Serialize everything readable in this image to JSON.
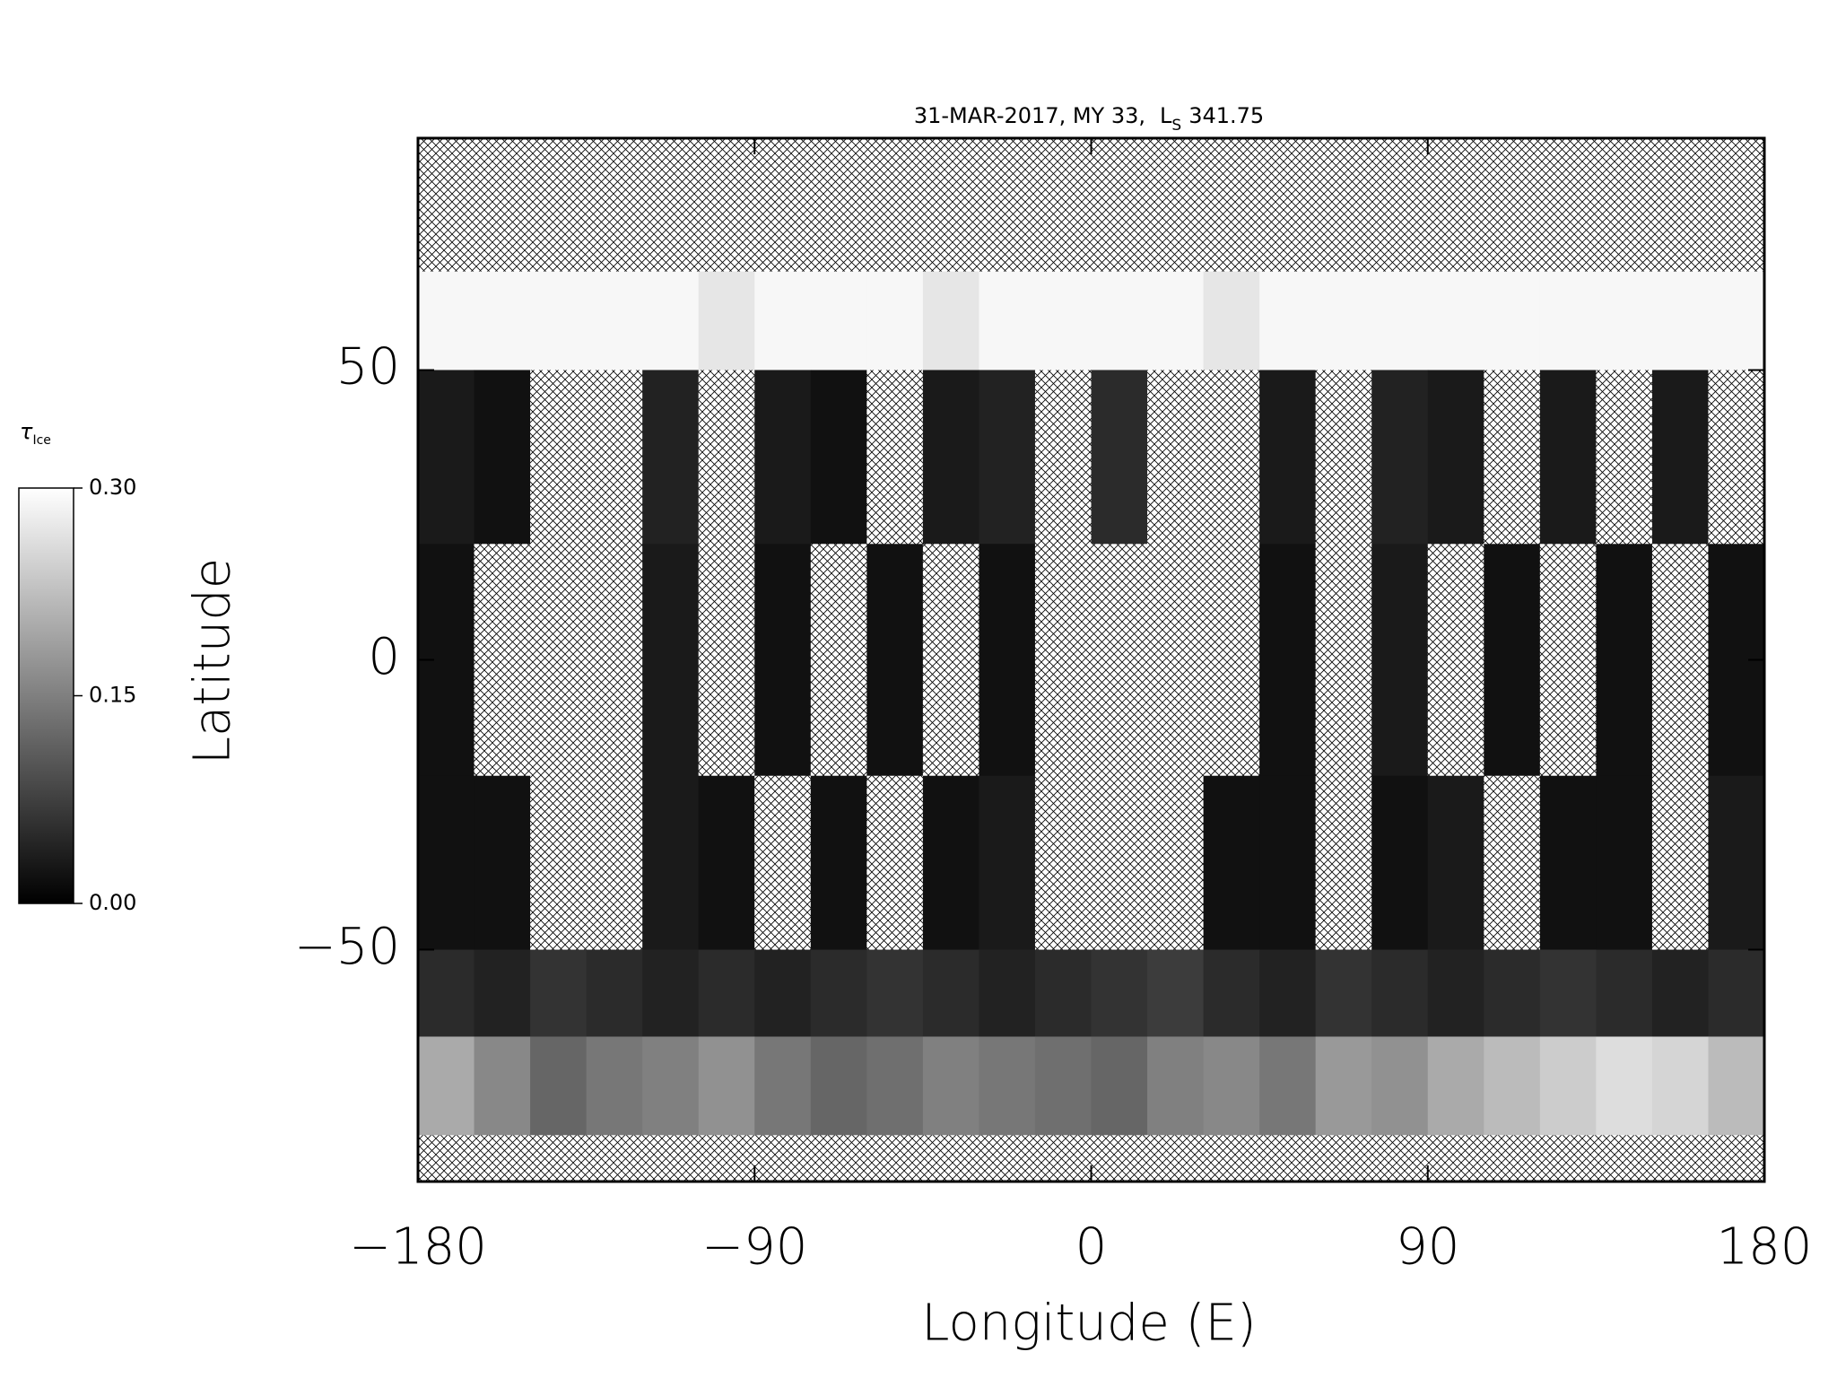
{
  "chart_data": {
    "type": "heatmap",
    "title_date": "31-MAR-2017, MY 33,",
    "title_symbol": "L",
    "title_subscript": "S",
    "title_value": "341.75",
    "xlabel": "Longitude (E)",
    "ylabel": "Latitude",
    "xlim": [
      -180,
      180
    ],
    "ylim": [
      -90,
      90
    ],
    "xticks": [
      {
        "value": -180,
        "label": "−180"
      },
      {
        "value": -90,
        "label": "−90"
      },
      0,
      90,
      180
    ],
    "yticks": [
      {
        "value": -50,
        "label": "−50"
      },
      0,
      50
    ],
    "x_bins": [
      -180,
      -165,
      -150,
      -135,
      -120,
      -105,
      -90,
      -75,
      -60,
      -45,
      -30,
      -15,
      0,
      15,
      30,
      45,
      60,
      75,
      90,
      105,
      120,
      135,
      150,
      165,
      180
    ],
    "y_bins": [
      90,
      67,
      50,
      20,
      -20,
      -50,
      -65,
      -82,
      -90
    ],
    "values": [
      [
        null,
        null,
        null,
        null,
        null,
        null,
        null,
        null,
        null,
        null,
        null,
        null,
        null,
        null,
        null,
        null,
        null,
        null,
        null,
        null,
        null,
        null,
        null,
        null
      ],
      [
        0.29,
        0.29,
        0.29,
        0.29,
        0.29,
        0.27,
        0.29,
        0.29,
        0.29,
        0.27,
        0.29,
        0.29,
        0.29,
        0.29,
        0.27,
        0.29,
        0.29,
        0.29,
        0.29,
        0.29,
        0.29,
        0.29,
        0.29,
        0.29
      ],
      [
        0.03,
        0.02,
        null,
        null,
        0.04,
        null,
        0.03,
        0.02,
        null,
        0.03,
        0.04,
        null,
        0.05,
        null,
        null,
        0.03,
        null,
        0.04,
        0.03,
        null,
        0.03,
        null,
        0.03,
        null
      ],
      [
        0.02,
        null,
        null,
        null,
        0.03,
        null,
        0.02,
        null,
        0.02,
        null,
        0.02,
        null,
        null,
        null,
        null,
        0.02,
        null,
        0.03,
        null,
        0.02,
        null,
        0.02,
        null,
        0.02
      ],
      [
        0.02,
        0.02,
        null,
        null,
        0.03,
        0.02,
        null,
        0.02,
        null,
        0.02,
        0.03,
        null,
        null,
        null,
        0.02,
        0.02,
        null,
        0.02,
        0.03,
        null,
        0.02,
        0.02,
        null,
        0.03
      ],
      [
        0.05,
        0.04,
        0.06,
        0.05,
        0.04,
        0.05,
        0.04,
        0.05,
        0.06,
        0.05,
        0.04,
        0.05,
        0.06,
        0.07,
        0.05,
        0.04,
        0.06,
        0.05,
        0.04,
        0.05,
        0.06,
        0.05,
        0.04,
        0.05
      ],
      [
        0.2,
        0.16,
        0.12,
        0.14,
        0.15,
        0.17,
        0.14,
        0.12,
        0.13,
        0.15,
        0.14,
        0.13,
        0.12,
        0.15,
        0.16,
        0.14,
        0.18,
        0.17,
        0.2,
        0.22,
        0.24,
        0.26,
        0.25,
        0.22
      ],
      [
        null,
        null,
        null,
        null,
        null,
        null,
        null,
        null,
        null,
        null,
        null,
        null,
        null,
        null,
        null,
        null,
        null,
        null,
        null,
        null,
        null,
        null,
        null,
        null
      ]
    ],
    "colorbar_label": "τ",
    "colorbar_label_subscript": "Ice",
    "colorbar_lim": [
      0,
      0.3
    ],
    "colorbar_ticks": [
      {
        "value": 0,
        "label": "0.00"
      },
      0.15,
      {
        "value": 0.3,
        "label": "0.30"
      }
    ]
  }
}
